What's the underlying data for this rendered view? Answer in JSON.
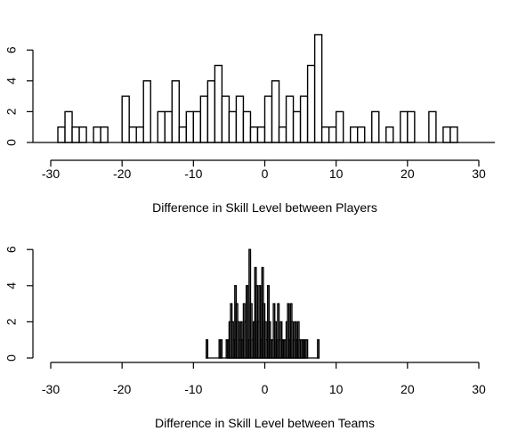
{
  "chart_data": [
    {
      "type": "bar",
      "xlabel": "Difference in Skill Level between Players",
      "ylabel": "",
      "xlim": [
        -30,
        30
      ],
      "ylim": [
        0,
        7
      ],
      "xticks": [
        -30,
        -20,
        -10,
        0,
        10,
        20,
        30
      ],
      "yticks": [
        0,
        2,
        4,
        6
      ],
      "bin_width": 1,
      "bins": [
        {
          "x": -29,
          "count": 1
        },
        {
          "x": -28,
          "count": 2
        },
        {
          "x": -27,
          "count": 1
        },
        {
          "x": -26,
          "count": 1
        },
        {
          "x": -24,
          "count": 1
        },
        {
          "x": -23,
          "count": 1
        },
        {
          "x": -20,
          "count": 3
        },
        {
          "x": -19,
          "count": 1
        },
        {
          "x": -18,
          "count": 1
        },
        {
          "x": -17,
          "count": 4
        },
        {
          "x": -15,
          "count": 2
        },
        {
          "x": -14,
          "count": 2
        },
        {
          "x": -13,
          "count": 4
        },
        {
          "x": -12,
          "count": 1
        },
        {
          "x": -11,
          "count": 2
        },
        {
          "x": -10,
          "count": 2
        },
        {
          "x": -9,
          "count": 3
        },
        {
          "x": -8,
          "count": 4
        },
        {
          "x": -7,
          "count": 5
        },
        {
          "x": -6,
          "count": 3
        },
        {
          "x": -5,
          "count": 2
        },
        {
          "x": -4,
          "count": 3
        },
        {
          "x": -3,
          "count": 2
        },
        {
          "x": -2,
          "count": 1
        },
        {
          "x": -1,
          "count": 1
        },
        {
          "x": 0,
          "count": 3
        },
        {
          "x": 1,
          "count": 4
        },
        {
          "x": 2,
          "count": 1
        },
        {
          "x": 3,
          "count": 3
        },
        {
          "x": 4,
          "count": 2
        },
        {
          "x": 5,
          "count": 3
        },
        {
          "x": 6,
          "count": 5
        },
        {
          "x": 7,
          "count": 7
        },
        {
          "x": 8,
          "count": 1
        },
        {
          "x": 9,
          "count": 1
        },
        {
          "x": 10,
          "count": 2
        },
        {
          "x": 12,
          "count": 1
        },
        {
          "x": 13,
          "count": 1
        },
        {
          "x": 15,
          "count": 2
        },
        {
          "x": 17,
          "count": 1
        },
        {
          "x": 19,
          "count": 2
        },
        {
          "x": 20,
          "count": 2
        },
        {
          "x": 23,
          "count": 2
        },
        {
          "x": 25,
          "count": 1
        },
        {
          "x": 26,
          "count": 1
        }
      ]
    },
    {
      "type": "bar",
      "xlabel": "Difference in Skill Level between Teams",
      "ylabel": "",
      "xlim": [
        -30,
        30
      ],
      "ylim": [
        0,
        6
      ],
      "xticks": [
        -30,
        -20,
        -10,
        0,
        10,
        20,
        30
      ],
      "yticks": [
        0,
        2,
        4,
        6
      ],
      "bin_width": 0.2,
      "bins": [
        {
          "x": -8.2,
          "count": 1
        },
        {
          "x": -6.4,
          "count": 1
        },
        {
          "x": -6.2,
          "count": 1
        },
        {
          "x": -5.4,
          "count": 1
        },
        {
          "x": -5.2,
          "count": 1
        },
        {
          "x": -5.0,
          "count": 2
        },
        {
          "x": -4.8,
          "count": 3
        },
        {
          "x": -4.6,
          "count": 2
        },
        {
          "x": -4.4,
          "count": 1
        },
        {
          "x": -4.2,
          "count": 4
        },
        {
          "x": -4.0,
          "count": 3
        },
        {
          "x": -3.8,
          "count": 2
        },
        {
          "x": -3.6,
          "count": 1
        },
        {
          "x": -3.4,
          "count": 2
        },
        {
          "x": -3.2,
          "count": 1
        },
        {
          "x": -3.0,
          "count": 3
        },
        {
          "x": -2.8,
          "count": 2
        },
        {
          "x": -2.6,
          "count": 4
        },
        {
          "x": -2.4,
          "count": 1
        },
        {
          "x": -2.2,
          "count": 6
        },
        {
          "x": -2.0,
          "count": 3
        },
        {
          "x": -1.8,
          "count": 1
        },
        {
          "x": -1.6,
          "count": 2
        },
        {
          "x": -1.4,
          "count": 5
        },
        {
          "x": -1.2,
          "count": 4
        },
        {
          "x": -1.0,
          "count": 2
        },
        {
          "x": -0.8,
          "count": 4
        },
        {
          "x": -0.6,
          "count": 1
        },
        {
          "x": -0.4,
          "count": 5
        },
        {
          "x": -0.2,
          "count": 3
        },
        {
          "x": 0.0,
          "count": 2
        },
        {
          "x": 0.2,
          "count": 1
        },
        {
          "x": 0.4,
          "count": 4
        },
        {
          "x": 0.6,
          "count": 2
        },
        {
          "x": 0.8,
          "count": 1
        },
        {
          "x": 1.0,
          "count": 1
        },
        {
          "x": 1.2,
          "count": 3
        },
        {
          "x": 1.4,
          "count": 2
        },
        {
          "x": 1.6,
          "count": 1
        },
        {
          "x": 1.8,
          "count": 3
        },
        {
          "x": 2.0,
          "count": 1
        },
        {
          "x": 2.2,
          "count": 2
        },
        {
          "x": 2.4,
          "count": 1
        },
        {
          "x": 2.6,
          "count": 1
        },
        {
          "x": 2.8,
          "count": 1
        },
        {
          "x": 3.0,
          "count": 2
        },
        {
          "x": 3.2,
          "count": 3
        },
        {
          "x": 3.4,
          "count": 1
        },
        {
          "x": 3.6,
          "count": 3
        },
        {
          "x": 3.8,
          "count": 2
        },
        {
          "x": 4.0,
          "count": 1
        },
        {
          "x": 4.2,
          "count": 2
        },
        {
          "x": 4.4,
          "count": 1
        },
        {
          "x": 4.6,
          "count": 2
        },
        {
          "x": 4.8,
          "count": 1
        },
        {
          "x": 5.0,
          "count": 1
        },
        {
          "x": 5.2,
          "count": 1
        },
        {
          "x": 5.4,
          "count": 1
        },
        {
          "x": 5.6,
          "count": 1
        },
        {
          "x": 5.8,
          "count": 1
        },
        {
          "x": 7.4,
          "count": 1
        }
      ]
    }
  ]
}
